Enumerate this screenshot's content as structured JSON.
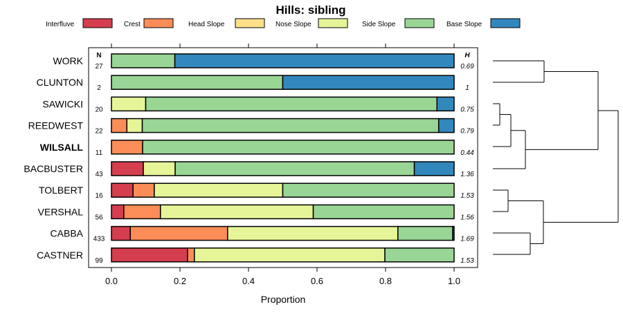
{
  "chart_data": {
    "type": "bar",
    "orientation": "horizontal-stacked",
    "title": "Hills: sibling",
    "xlabel": "Proportion",
    "xlim": [
      0,
      1
    ],
    "xticks": [
      "0.0",
      "0.2",
      "0.4",
      "0.6",
      "0.8",
      "1.0"
    ],
    "n_header": "N",
    "h_header": "H",
    "legend": [
      {
        "name": "Interfluve",
        "color": "#D53E4F"
      },
      {
        "name": "Crest",
        "color": "#FC8D59"
      },
      {
        "name": "Head Slope",
        "color": "#FEE08B"
      },
      {
        "name": "Nose Slope",
        "color": "#E6F598"
      },
      {
        "name": "Side Slope",
        "color": "#99D594"
      },
      {
        "name": "Base Slope",
        "color": "#3288BD"
      }
    ],
    "categories": [
      "WORK",
      "CLUNTON",
      "SAWICKI",
      "REEDWEST",
      "WILSALL",
      "BACBUSTER",
      "TOLBERT",
      "VERSHAL",
      "CABBA",
      "CASTNER"
    ],
    "highlight": "WILSALL",
    "n": [
      "27",
      "2",
      "20",
      "22",
      "11",
      "43",
      "16",
      "56",
      "433",
      "99"
    ],
    "h": [
      "0.69",
      "1",
      "0.75",
      "0.79",
      "0.44",
      "1.36",
      "1.53",
      "1.56",
      "1.69",
      "1.53"
    ],
    "series": [
      {
        "name": "Interfluve",
        "values": [
          0,
          0,
          0,
          0,
          0,
          0.093,
          0.063,
          0.036,
          0.055,
          0.222
        ]
      },
      {
        "name": "Crest",
        "values": [
          0,
          0,
          0,
          0.045,
          0.091,
          0,
          0.062,
          0.107,
          0.284,
          0.02
        ]
      },
      {
        "name": "Head Slope",
        "values": [
          0,
          0,
          0,
          0,
          0,
          0,
          0,
          0,
          0,
          0
        ]
      },
      {
        "name": "Nose Slope",
        "values": [
          0,
          0,
          0.1,
          0.045,
          0,
          0.093,
          0.375,
          0.446,
          0.497,
          0.556
        ]
      },
      {
        "name": "Side Slope",
        "values": [
          0.185,
          0.5,
          0.85,
          0.865,
          0.909,
          0.698,
          0.5,
          0.411,
          0.16,
          0.202
        ]
      },
      {
        "name": "Base Slope",
        "values": [
          0.815,
          0.5,
          0.05,
          0.045,
          0,
          0.116,
          0,
          0,
          0.004,
          0
        ]
      }
    ]
  }
}
